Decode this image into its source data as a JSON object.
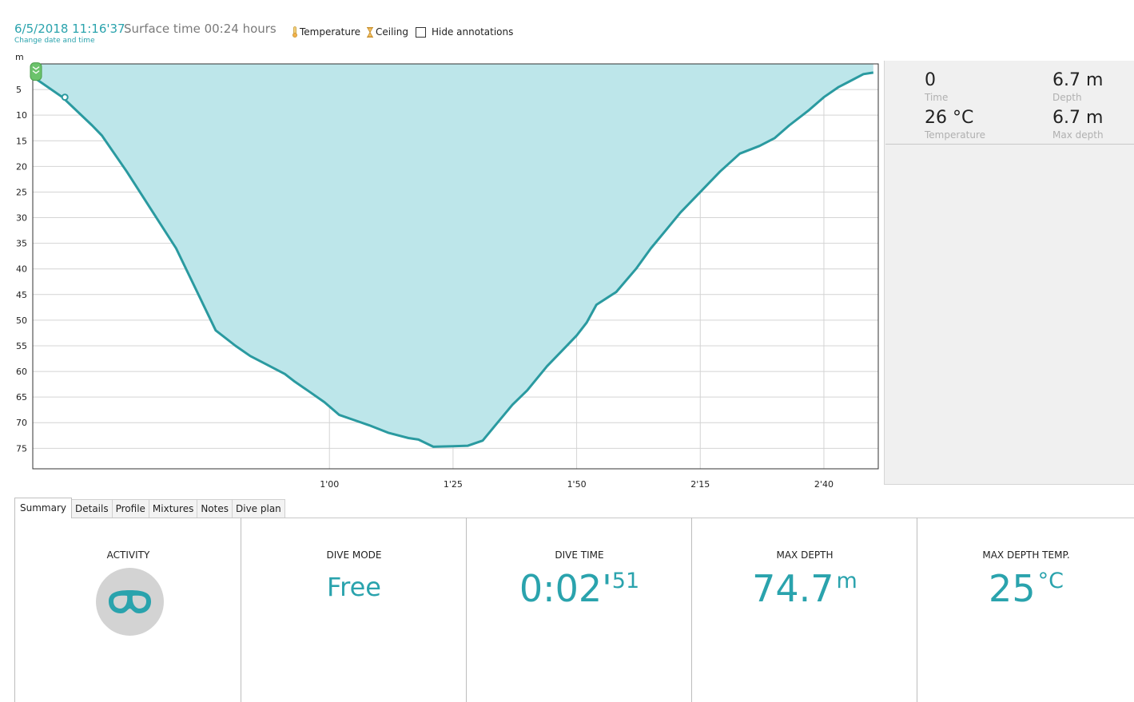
{
  "header": {
    "datetime": "6/5/2018 11:16'37",
    "surface_time": "Surface time 00:24 hours",
    "change_date_link": "Change date and time",
    "toggles": [
      {
        "label": "Temperature",
        "icon": "thermometer-icon"
      },
      {
        "label": "Ceiling",
        "icon": "hourglass-icon"
      },
      {
        "label": "Hide annotations",
        "icon": "checkbox",
        "checked": false
      }
    ]
  },
  "chart_data": {
    "type": "area",
    "y_unit_label": "m",
    "y_reversed": true,
    "ylim": [
      0,
      79
    ],
    "xlim_seconds": [
      0,
      171
    ],
    "y_ticks": [
      5,
      10,
      15,
      20,
      25,
      30,
      35,
      40,
      45,
      50,
      55,
      60,
      65,
      70,
      75
    ],
    "x_ticks": [
      {
        "label": "1'00",
        "seconds": 60
      },
      {
        "label": "1'25",
        "seconds": 85
      },
      {
        "label": "1'50",
        "seconds": 110
      },
      {
        "label": "2'15",
        "seconds": 135
      },
      {
        "label": "2'40",
        "seconds": 160
      }
    ],
    "grid": true,
    "fill_color": "#bde6ea",
    "line_color": "#2a9aa0",
    "series": [
      {
        "x": [
          0,
          6,
          12,
          14,
          19,
          24,
          29,
          33,
          37,
          41,
          44,
          47,
          51,
          53,
          56,
          59,
          62,
          65,
          68,
          72,
          76,
          78,
          81,
          85,
          88,
          91,
          94,
          97,
          100,
          104,
          107,
          110,
          112,
          114,
          118,
          122,
          125,
          128,
          131,
          135,
          139,
          143,
          147,
          150,
          153,
          157,
          160,
          163,
          165,
          168,
          170
        ],
        "y": [
          2.5,
          6.5,
          12,
          14,
          21,
          28.5,
          36,
          44,
          52,
          55,
          57,
          58.5,
          60.5,
          62,
          64,
          66,
          68.5,
          69.5,
          70.5,
          72,
          73,
          73.3,
          74.7,
          74.6,
          74.5,
          73.5,
          70,
          66.5,
          63.7,
          59,
          56,
          53,
          50.5,
          47,
          44.5,
          40,
          36,
          32.5,
          29,
          25,
          21,
          17.5,
          16,
          14.5,
          12,
          9,
          6.5,
          4.5,
          3.5,
          2,
          1.7
        ]
      }
    ],
    "markers": [
      {
        "x": 0,
        "y": 1.5,
        "kind": "descent-start",
        "icon": "chevrons-down-icon"
      },
      {
        "x": 6.5,
        "y": 6.5,
        "kind": "point"
      }
    ]
  },
  "info_panel": {
    "items": [
      {
        "value": "0",
        "label": "Time"
      },
      {
        "value": "6.7 m",
        "label": "Depth"
      },
      {
        "value": "26 °C",
        "label": "Temperature"
      },
      {
        "value": "6.7 m",
        "label": "Max depth"
      }
    ]
  },
  "tabs": [
    "Summary",
    "Details",
    "Profile",
    "Mixtures",
    "Notes",
    "Dive plan"
  ],
  "active_tab": "Summary",
  "summary": {
    "activity": {
      "title": "ACTIVITY",
      "icon": "diving-mask-icon"
    },
    "dive_mode": {
      "title": "DIVE MODE",
      "value": "Free"
    },
    "dive_time": {
      "title": "DIVE TIME",
      "main": "0:02'",
      "seconds": "51"
    },
    "max_depth": {
      "title": "MAX DEPTH",
      "value": "74.7",
      "unit": "m"
    },
    "max_depth_temp": {
      "title": "MAX DEPTH TEMP.",
      "value": "25",
      "unit": "°C"
    }
  }
}
